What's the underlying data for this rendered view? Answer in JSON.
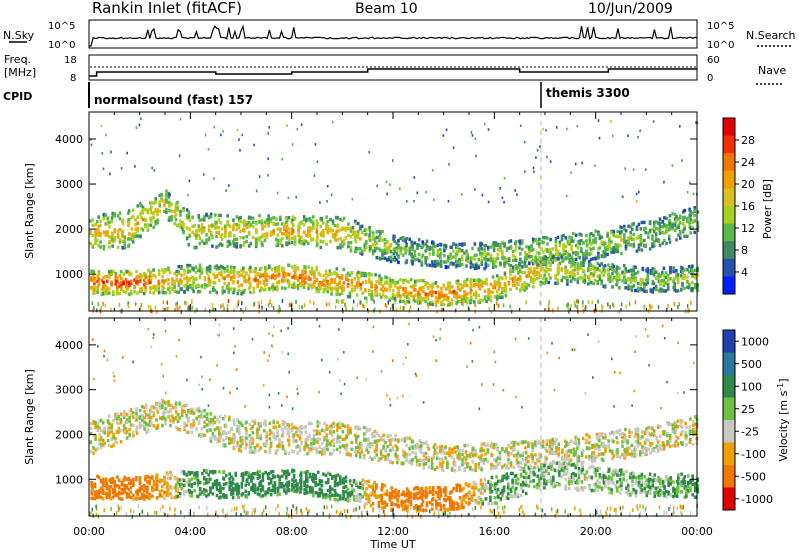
{
  "header": {
    "station": "Rankin Inlet (fitACF)",
    "beam": "Beam 10",
    "date": "10/Jun/2009"
  },
  "noise_panel": {
    "left_label": "N.Sky",
    "right_label": "N.Search",
    "left_ticks": [
      "10^5",
      "10^0"
    ],
    "right_ticks": [
      "10^5",
      "10^0"
    ]
  },
  "freq_panel": {
    "left_label_1": "Freq.",
    "left_label_2": "[MHz]",
    "right_label": "Nave",
    "left_ticks": [
      "18",
      "8"
    ],
    "right_ticks": [
      "60",
      "0"
    ]
  },
  "cpid_panel": {
    "label": "CPID",
    "mode_1": "normalsound (fast) 157",
    "mode_2": "themis 3300"
  },
  "x_axis": {
    "label": "Time UT",
    "ticks": [
      "00:00",
      "04:00",
      "08:00",
      "12:00",
      "16:00",
      "20:00",
      "00:00"
    ]
  },
  "power_colorbar": {
    "label": "Power [dB]",
    "ticks": [
      "28",
      "24",
      "20",
      "16",
      "12",
      "8",
      "4"
    ],
    "colors": [
      "#e00000",
      "#f03000",
      "#f07800",
      "#f0a000",
      "#d8c020",
      "#a8d020",
      "#58b848",
      "#408c60",
      "#2850b0",
      "#0020ff"
    ]
  },
  "velocity_colorbar": {
    "label": "Velocity [m s^-1]",
    "ticks": [
      "1000",
      "500",
      "100",
      "25",
      "-25",
      "-100",
      "-500",
      "-1000"
    ],
    "colors": [
      "#2040b0",
      "#2878a0",
      "#2f8a4a",
      "#6ec040",
      "#c8c8c0",
      "#f0a000",
      "#f07800",
      "#e00000"
    ]
  },
  "chart_data": [
    {
      "type": "heatmap",
      "title": "Power [dB]",
      "xlabel": "",
      "ylabel": "Slant Range [km]",
      "x_ticks": [
        "00:00",
        "04:00",
        "08:00",
        "12:00",
        "16:00",
        "20:00",
        "00:00"
      ],
      "y_ticks": [
        1000,
        2000,
        3000,
        4000
      ],
      "xlim_hours": [
        0,
        24
      ],
      "ylim": [
        180,
        4600
      ],
      "colorbar_range": [
        0,
        30
      ],
      "bands": [
        {
          "name": "far_band",
          "points": [
            [
              0,
              1900,
              380,
              16
            ],
            [
              1.5,
              2000,
              420,
              18
            ],
            [
              3,
              2550,
              300,
              14
            ],
            [
              4,
              1950,
              380,
              14
            ],
            [
              6,
              1950,
              360,
              16
            ],
            [
              8,
              1950,
              320,
              18
            ],
            [
              10,
              1900,
              360,
              16
            ],
            [
              12,
              1550,
              300,
              10
            ],
            [
              14,
              1400,
              260,
              10
            ],
            [
              16,
              1400,
              300,
              12
            ],
            [
              18,
              1500,
              320,
              12
            ],
            [
              20,
              1650,
              320,
              12
            ],
            [
              22,
              1850,
              320,
              10
            ],
            [
              24,
              2200,
              300,
              10
            ]
          ]
        },
        {
          "name": "near_band",
          "points": [
            [
              0,
              800,
              260,
              22
            ],
            [
              2,
              800,
              260,
              24
            ],
            [
              4,
              900,
              300,
              14
            ],
            [
              6,
              850,
              300,
              20
            ],
            [
              8,
              950,
              260,
              22
            ],
            [
              10,
              800,
              300,
              20
            ],
            [
              12,
              650,
              260,
              18
            ],
            [
              14,
              550,
              260,
              22
            ],
            [
              16,
              700,
              300,
              18
            ],
            [
              18,
              1100,
              300,
              16
            ],
            [
              20,
              1000,
              280,
              12
            ],
            [
              22,
              850,
              260,
              10
            ],
            [
              24,
              900,
              280,
              12
            ]
          ]
        }
      ]
    },
    {
      "type": "heatmap",
      "title": "Velocity [m s^-1]",
      "xlabel": "Time UT",
      "ylabel": "Slant Range [km]",
      "x_ticks": [
        "00:00",
        "04:00",
        "08:00",
        "12:00",
        "16:00",
        "20:00",
        "00:00"
      ],
      "y_ticks": [
        1000,
        2000,
        3000,
        4000
      ],
      "xlim_hours": [
        0,
        24
      ],
      "ylim": [
        180,
        4600
      ],
      "colorbar_range": [
        -1000,
        1000
      ],
      "bands": [
        {
          "name": "far_band",
          "points": [
            [
              0,
              1900,
              380,
              0
            ],
            [
              3,
              2500,
              300,
              0
            ],
            [
              6,
              1950,
              360,
              0
            ],
            [
              10,
              1900,
              360,
              0
            ],
            [
              14,
              1450,
              280,
              0
            ],
            [
              18,
              1550,
              320,
              0
            ],
            [
              22,
              1850,
              320,
              0
            ],
            [
              24,
              2100,
              300,
              0
            ]
          ]
        },
        {
          "name": "near_band",
          "points": [
            [
              0,
              800,
              260,
              -150
            ],
            [
              2,
              800,
              260,
              -200
            ],
            [
              4,
              900,
              300,
              80
            ],
            [
              6,
              850,
              300,
              150
            ],
            [
              8,
              950,
              260,
              200
            ],
            [
              10,
              800,
              300,
              120
            ],
            [
              12,
              550,
              260,
              -200
            ],
            [
              14,
              550,
              260,
              -250
            ],
            [
              16,
              750,
              300,
              100
            ],
            [
              18,
              1100,
              300,
              40
            ],
            [
              20,
              1000,
              280,
              30
            ],
            [
              22,
              850,
              260,
              60
            ],
            [
              24,
              850,
              260,
              100
            ]
          ]
        }
      ]
    }
  ]
}
